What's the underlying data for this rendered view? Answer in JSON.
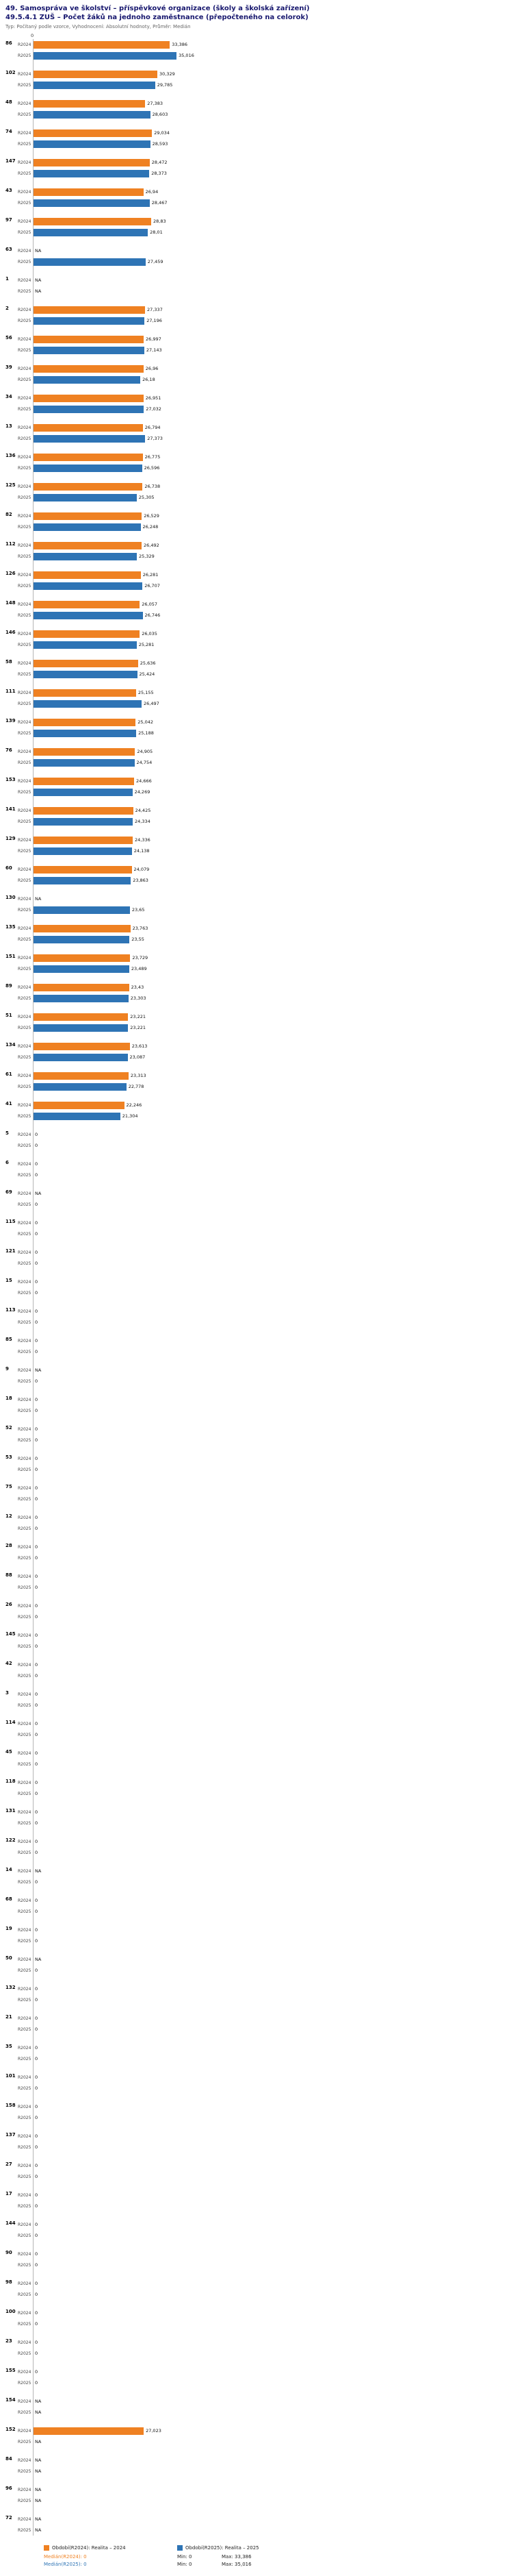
{
  "header": {
    "title1": "49. Samospráva ve školství – příspěvkové organizace (školy a školská zařízení)",
    "title2": "49.5.4.1 ZUŠ – Počet žáků na jednoho zaměstnance (přepočteného na celorok)",
    "subtitle": "Typ: Počítaný podle vzorce, Vyhodnocení: Absolutní hodnoty, Průměr: Medián"
  },
  "axis": {
    "zero_label": "0"
  },
  "chart_data": {
    "type": "bar",
    "orientation": "horizontal",
    "title": "49.5.4.1 ZUŠ – Počet žáků na jednoho zaměstnance (přepočteného na celorok)",
    "value_format": "czech-decimal-comma",
    "xlim": [
      0,
      36
    ],
    "grid": false,
    "legend_position": "bottom",
    "series_names": [
      "R2024",
      "R2025"
    ],
    "colors": {
      "r2024": "#ef8122",
      "r2025": "#2e74b5"
    },
    "rows": [
      {
        "id": "86",
        "r2024": "33,386",
        "r2025": "35,016"
      },
      {
        "id": "102",
        "r2024": "30,329",
        "r2025": "29,785"
      },
      {
        "id": "48",
        "r2024": "27,383",
        "r2025": "28,603"
      },
      {
        "id": "74",
        "r2024": "29,034",
        "r2025": "28,593"
      },
      {
        "id": "147",
        "r2024": "28,472",
        "r2025": "28,373"
      },
      {
        "id": "43",
        "r2024": "26,94",
        "r2025": "28,467"
      },
      {
        "id": "97",
        "r2024": "28,83",
        "r2025": "28,01"
      },
      {
        "id": "63",
        "r2024": "NA",
        "r2025": "27,459"
      },
      {
        "id": "1",
        "r2024": "NA",
        "r2025": "NA"
      },
      {
        "id": "2",
        "r2024": "27,337",
        "r2025": "27,196"
      },
      {
        "id": "56",
        "r2024": "26,997",
        "r2025": "27,143"
      },
      {
        "id": "39",
        "r2024": "26,96",
        "r2025": "26,18"
      },
      {
        "id": "34",
        "r2024": "26,951",
        "r2025": "27,032"
      },
      {
        "id": "13",
        "r2024": "26,794",
        "r2025": "27,373"
      },
      {
        "id": "136",
        "r2024": "26,775",
        "r2025": "26,596"
      },
      {
        "id": "125",
        "r2024": "26,738",
        "r2025": "25,305"
      },
      {
        "id": "82",
        "r2024": "26,529",
        "r2025": "26,248"
      },
      {
        "id": "112",
        "r2024": "26,492",
        "r2025": "25,329"
      },
      {
        "id": "126",
        "r2024": "26,281",
        "r2025": "26,707"
      },
      {
        "id": "148",
        "r2024": "26,057",
        "r2025": "26,746"
      },
      {
        "id": "146",
        "r2024": "26,035",
        "r2025": "25,281"
      },
      {
        "id": "58",
        "r2024": "25,636",
        "r2025": "25,424"
      },
      {
        "id": "111",
        "r2024": "25,155",
        "r2025": "26,497"
      },
      {
        "id": "139",
        "r2024": "25,042",
        "r2025": "25,188"
      },
      {
        "id": "76",
        "r2024": "24,905",
        "r2025": "24,754"
      },
      {
        "id": "153",
        "r2024": "24,666",
        "r2025": "24,269"
      },
      {
        "id": "141",
        "r2024": "24,425",
        "r2025": "24,334"
      },
      {
        "id": "129",
        "r2024": "24,336",
        "r2025": "24,138"
      },
      {
        "id": "60",
        "r2024": "24,079",
        "r2025": "23,863"
      },
      {
        "id": "130",
        "r2024": "NA",
        "r2025": "23,65"
      },
      {
        "id": "135",
        "r2024": "23,763",
        "r2025": "23,55"
      },
      {
        "id": "151",
        "r2024": "23,729",
        "r2025": "23,489"
      },
      {
        "id": "89",
        "r2024": "23,43",
        "r2025": "23,303"
      },
      {
        "id": "51",
        "r2024": "23,221",
        "r2025": "23,221"
      },
      {
        "id": "134",
        "r2024": "23,613",
        "r2025": "23,087"
      },
      {
        "id": "61",
        "r2024": "23,313",
        "r2025": "22,778"
      },
      {
        "id": "41",
        "r2024": "22,246",
        "r2025": "21,304"
      },
      {
        "id": "5",
        "r2024": "0",
        "r2025": "0"
      },
      {
        "id": "6",
        "r2024": "0",
        "r2025": "0"
      },
      {
        "id": "69",
        "r2024": "NA",
        "r2025": "0"
      },
      {
        "id": "115",
        "r2024": "0",
        "r2025": "0"
      },
      {
        "id": "121",
        "r2024": "0",
        "r2025": "0"
      },
      {
        "id": "15",
        "r2024": "0",
        "r2025": "0"
      },
      {
        "id": "113",
        "r2024": "0",
        "r2025": "0"
      },
      {
        "id": "85",
        "r2024": "0",
        "r2025": "0"
      },
      {
        "id": "9",
        "r2024": "NA",
        "r2025": "0"
      },
      {
        "id": "18",
        "r2024": "0",
        "r2025": "0"
      },
      {
        "id": "52",
        "r2024": "0",
        "r2025": "0"
      },
      {
        "id": "53",
        "r2024": "0",
        "r2025": "0"
      },
      {
        "id": "75",
        "r2024": "0",
        "r2025": "0"
      },
      {
        "id": "12",
        "r2024": "0",
        "r2025": "0"
      },
      {
        "id": "28",
        "r2024": "0",
        "r2025": "0"
      },
      {
        "id": "88",
        "r2024": "0",
        "r2025": "0"
      },
      {
        "id": "26",
        "r2024": "0",
        "r2025": "0"
      },
      {
        "id": "145",
        "r2024": "0",
        "r2025": "0"
      },
      {
        "id": "42",
        "r2024": "0",
        "r2025": "0"
      },
      {
        "id": "3",
        "r2024": "0",
        "r2025": "0"
      },
      {
        "id": "114",
        "r2024": "0",
        "r2025": "0"
      },
      {
        "id": "45",
        "r2024": "0",
        "r2025": "0"
      },
      {
        "id": "118",
        "r2024": "0",
        "r2025": "0"
      },
      {
        "id": "131",
        "r2024": "0",
        "r2025": "0"
      },
      {
        "id": "122",
        "r2024": "0",
        "r2025": "0"
      },
      {
        "id": "14",
        "r2024": "NA",
        "r2025": "0"
      },
      {
        "id": "68",
        "r2024": "0",
        "r2025": "0"
      },
      {
        "id": "19",
        "r2024": "0",
        "r2025": "0"
      },
      {
        "id": "50",
        "r2024": "NA",
        "r2025": "0"
      },
      {
        "id": "132",
        "r2024": "0",
        "r2025": "0"
      },
      {
        "id": "21",
        "r2024": "0",
        "r2025": "0"
      },
      {
        "id": "35",
        "r2024": "0",
        "r2025": "0"
      },
      {
        "id": "101",
        "r2024": "0",
        "r2025": "0"
      },
      {
        "id": "158",
        "r2024": "0",
        "r2025": "0"
      },
      {
        "id": "137",
        "r2024": "0",
        "r2025": "0"
      },
      {
        "id": "27",
        "r2024": "0",
        "r2025": "0"
      },
      {
        "id": "17",
        "r2024": "0",
        "r2025": "0"
      },
      {
        "id": "144",
        "r2024": "0",
        "r2025": "0"
      },
      {
        "id": "90",
        "r2024": "0",
        "r2025": "0"
      },
      {
        "id": "98",
        "r2024": "0",
        "r2025": "0"
      },
      {
        "id": "100",
        "r2024": "0",
        "r2025": "0"
      },
      {
        "id": "23",
        "r2024": "0",
        "r2025": "0"
      },
      {
        "id": "155",
        "r2024": "0",
        "r2025": "0"
      },
      {
        "id": "154",
        "r2024": "NA",
        "r2025": "NA"
      },
      {
        "id": "152",
        "r2024": "27,023",
        "r2025": "NA"
      },
      {
        "id": "84",
        "r2024": "NA",
        "r2025": "NA"
      },
      {
        "id": "96",
        "r2024": "NA",
        "r2025": "NA"
      },
      {
        "id": "72",
        "r2024": "NA",
        "r2025": "NA"
      }
    ]
  },
  "footer": {
    "legend_r2024": "Období(R2024): Realita – 2024",
    "legend_r2025": "Období(R2025): Realita – 2025",
    "median_r2024": "Medián(R2024): 0",
    "min_r2024": "Min: 0",
    "max_r2024": "Max: 33,386",
    "median_r2025": "Medián(R2025): 0",
    "min_r2025": "Min: 0",
    "max_r2025": "Max: 35,016"
  }
}
